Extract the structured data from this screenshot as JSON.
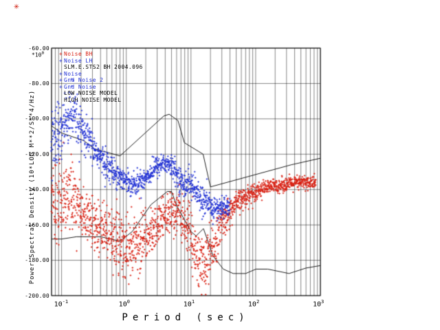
{
  "figure": {
    "stamp_glyph": "✳",
    "stamp_color": "#cc1100"
  },
  "chart_data": {
    "type": "scatter",
    "title": "",
    "xlabel": "Period (sec)",
    "ylabel": "Power Spectral Density (10*LOG M**2/S**4/Hz)",
    "grid": true,
    "legend_position": "top-left",
    "x_axis": {
      "scale": "log",
      "min": 0.07,
      "max": 1000,
      "ticks": [
        {
          "value": 0.1,
          "base": "10",
          "exp": "-1"
        },
        {
          "value": 1,
          "base": "10",
          "exp": "0"
        },
        {
          "value": 10,
          "base": "10",
          "exp": "1"
        },
        {
          "value": 100,
          "base": "10",
          "exp": "2"
        },
        {
          "value": 1000,
          "base": "10",
          "exp": "3"
        }
      ]
    },
    "y_axis": {
      "min": -200,
      "max": -60,
      "tick_step": 20,
      "scale_base": "*10",
      "scale_exp": "0",
      "ticks": [
        {
          "value": -200,
          "label": "-200.00"
        },
        {
          "value": -180,
          "label": "-180.00"
        },
        {
          "value": -160,
          "label": "-160.00"
        },
        {
          "value": -140,
          "label": "-140.00"
        },
        {
          "value": -120,
          "label": "-120.00"
        },
        {
          "value": -100,
          "label": "-100.00"
        },
        {
          "value": -80,
          "label": "-80.00"
        },
        {
          "value": -60,
          "label": "-60.00"
        }
      ]
    },
    "legend": [
      {
        "marker": "+",
        "marker_color": "#d81e10",
        "label": "Noise BH",
        "color": "#d81e10"
      },
      {
        "marker": "+",
        "marker_color": "#1f2fd4",
        "label": "Noise LH",
        "color": "#1f2fd4"
      },
      {
        "marker": "",
        "marker_color": "#000000",
        "label": "SLM.E.STS2 BH 2004.096",
        "color": "#000000"
      },
      {
        "marker": "+",
        "marker_color": "#1f2fd4",
        "label": "Noise",
        "color": "#1f2fd4"
      },
      {
        "marker": "+",
        "marker_color": "#1f2fd4",
        "label": "Gnd Noise 2",
        "color": "#1f2fd4"
      },
      {
        "marker": "+",
        "marker_color": "#1f2fd4",
        "label": "Gnd Noise",
        "color": "#1f2fd4"
      },
      {
        "marker": "",
        "marker_color": "#000000",
        "label": "LOW NOISE MODEL",
        "color": "#000000"
      },
      {
        "marker": "",
        "marker_color": "#000000",
        "label": "HIGH NOISE MODEL",
        "color": "#000000"
      }
    ],
    "series": [
      {
        "name": "Noise BH",
        "color": "#d81e10",
        "points": [
          [
            0.07,
            -149,
            13
          ],
          [
            0.09,
            -147,
            12
          ],
          [
            0.11,
            -144,
            10
          ],
          [
            0.13,
            -142,
            9
          ],
          [
            0.16,
            -146,
            9
          ],
          [
            0.2,
            -152,
            8
          ],
          [
            0.3,
            -158,
            8
          ],
          [
            0.4,
            -162,
            8
          ],
          [
            0.5,
            -165,
            8
          ],
          [
            0.7,
            -170,
            9
          ],
          [
            1.0,
            -174,
            10
          ],
          [
            1.4,
            -172,
            9
          ],
          [
            2.0,
            -167,
            8
          ],
          [
            2.6,
            -162,
            7
          ],
          [
            3.2,
            -159,
            6
          ],
          [
            4.0,
            -156,
            6
          ],
          [
            5.0,
            -154,
            6
          ],
          [
            6.0,
            -153,
            6
          ],
          [
            7.0,
            -155,
            7
          ],
          [
            8.0,
            -159,
            8
          ],
          [
            10,
            -167,
            10
          ],
          [
            12,
            -177,
            10
          ],
          [
            15,
            -186,
            9
          ],
          [
            18,
            -183,
            9
          ],
          [
            20,
            -176,
            8
          ],
          [
            25,
            -167,
            6
          ],
          [
            30,
            -159,
            5
          ],
          [
            40,
            -153,
            4
          ],
          [
            50,
            -148,
            3
          ],
          [
            70,
            -144,
            3
          ],
          [
            100,
            -141,
            2.5
          ],
          [
            140,
            -139,
            2
          ],
          [
            200,
            -138,
            2
          ],
          [
            300,
            -137,
            2
          ],
          [
            500,
            -136,
            2
          ],
          [
            700,
            -136,
            2
          ],
          [
            850,
            -136,
            2
          ]
        ]
      },
      {
        "name": "Noise LH",
        "color": "#1f2fd4",
        "points": [
          [
            0.07,
            -113,
            11
          ],
          [
            0.085,
            -110,
            10
          ],
          [
            0.1,
            -107,
            9
          ],
          [
            0.12,
            -101,
            8
          ],
          [
            0.145,
            -96,
            9
          ],
          [
            0.17,
            -102,
            7
          ],
          [
            0.2,
            -107,
            6
          ],
          [
            0.25,
            -112,
            5
          ],
          [
            0.3,
            -116,
            5
          ],
          [
            0.4,
            -122,
            4
          ],
          [
            0.5,
            -126,
            4
          ],
          [
            0.7,
            -131,
            3.5
          ],
          [
            1.0,
            -135,
            3
          ],
          [
            1.4,
            -137,
            3
          ],
          [
            2.0,
            -133,
            3
          ],
          [
            2.6,
            -129,
            3
          ],
          [
            3.2,
            -126,
            3
          ],
          [
            4.0,
            -125,
            3
          ],
          [
            5.0,
            -127,
            3
          ],
          [
            6.0,
            -131,
            3
          ],
          [
            7.0,
            -136,
            3.5
          ],
          [
            8.0,
            -137,
            4
          ],
          [
            9.0,
            -135,
            4
          ],
          [
            10,
            -137,
            4
          ],
          [
            12,
            -142,
            4
          ],
          [
            15,
            -146,
            4
          ],
          [
            20,
            -150,
            4
          ],
          [
            26,
            -151,
            3
          ],
          [
            32,
            -150,
            3
          ],
          [
            40,
            -149,
            3
          ]
        ]
      }
    ],
    "models": [
      {
        "name": "LOW NOISE MODEL",
        "color": "#000000",
        "points": [
          [
            0.07,
            -168
          ],
          [
            0.1,
            -168
          ],
          [
            0.17,
            -166.7
          ],
          [
            0.4,
            -166.7
          ],
          [
            0.8,
            -169.2
          ],
          [
            1.24,
            -163.7
          ],
          [
            2.4,
            -148.6
          ],
          [
            4.3,
            -141.1
          ],
          [
            5,
            -141.1
          ],
          [
            6,
            -149
          ],
          [
            10,
            -163.8
          ],
          [
            12,
            -166.2
          ],
          [
            15.6,
            -162.1
          ],
          [
            21.9,
            -177.5
          ],
          [
            31.6,
            -185
          ],
          [
            45,
            -187.5
          ],
          [
            70,
            -187.5
          ],
          [
            101,
            -185
          ],
          [
            154,
            -185
          ],
          [
            328,
            -187.5
          ],
          [
            600,
            -184.4
          ],
          [
            1000,
            -183
          ]
        ]
      },
      {
        "name": "HIGH NOISE MODEL",
        "color": "#000000",
        "points": [
          [
            0.07,
            -104
          ],
          [
            0.1,
            -108
          ],
          [
            0.22,
            -112.3
          ],
          [
            0.32,
            -116.9
          ],
          [
            0.8,
            -121
          ],
          [
            3.8,
            -98.4
          ],
          [
            4.6,
            -97.4
          ],
          [
            6.3,
            -101
          ],
          [
            7.9,
            -113.5
          ],
          [
            15.4,
            -120
          ],
          [
            20,
            -138.5
          ],
          [
            354,
            -126
          ],
          [
            1000,
            -122.3
          ]
        ]
      }
    ]
  }
}
